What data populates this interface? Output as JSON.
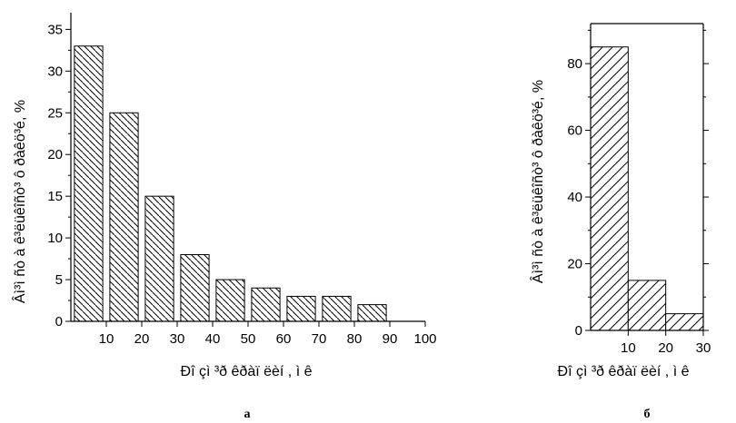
{
  "chart_data": [
    {
      "type": "bar",
      "panel_label": "а",
      "x": [
        5,
        15,
        25,
        35,
        45,
        55,
        65,
        75,
        85
      ],
      "values": [
        33,
        25,
        15,
        8,
        5,
        4,
        3,
        3,
        2
      ],
      "bar_width": 8,
      "xticks": [
        "10",
        "20",
        "30",
        "40",
        "50",
        "60",
        "70",
        "80",
        "90",
        "100"
      ],
      "yticks": [
        "0",
        "5",
        "10",
        "15",
        "20",
        "25",
        "30",
        "35"
      ],
      "xlim": [
        0,
        100
      ],
      "ylim": [
        0,
        37
      ],
      "xlabel": "Ðî çì ³ð êðàï ëèí , ì ê",
      "ylabel": "Âì³ì ñò à ê³ëüêîñò³ ô ðàêö³é, %",
      "hatch": "backslash"
    },
    {
      "type": "bar",
      "panel_label": "б",
      "x": [
        5,
        15,
        25
      ],
      "values": [
        85,
        15,
        5
      ],
      "bar_width": 10,
      "xticks": [
        "10",
        "20",
        "30"
      ],
      "yticks": [
        "0",
        "20",
        "40",
        "60",
        "80"
      ],
      "xlim": [
        0,
        30
      ],
      "ylim": [
        0,
        92
      ],
      "xlabel": "Ðî çì ³ð êðàï ëèí , ì ê",
      "ylabel": "Âì³ì ñò à ê³ëüêîñò³ ô ðàêö³é, %",
      "hatch": "slash"
    }
  ]
}
